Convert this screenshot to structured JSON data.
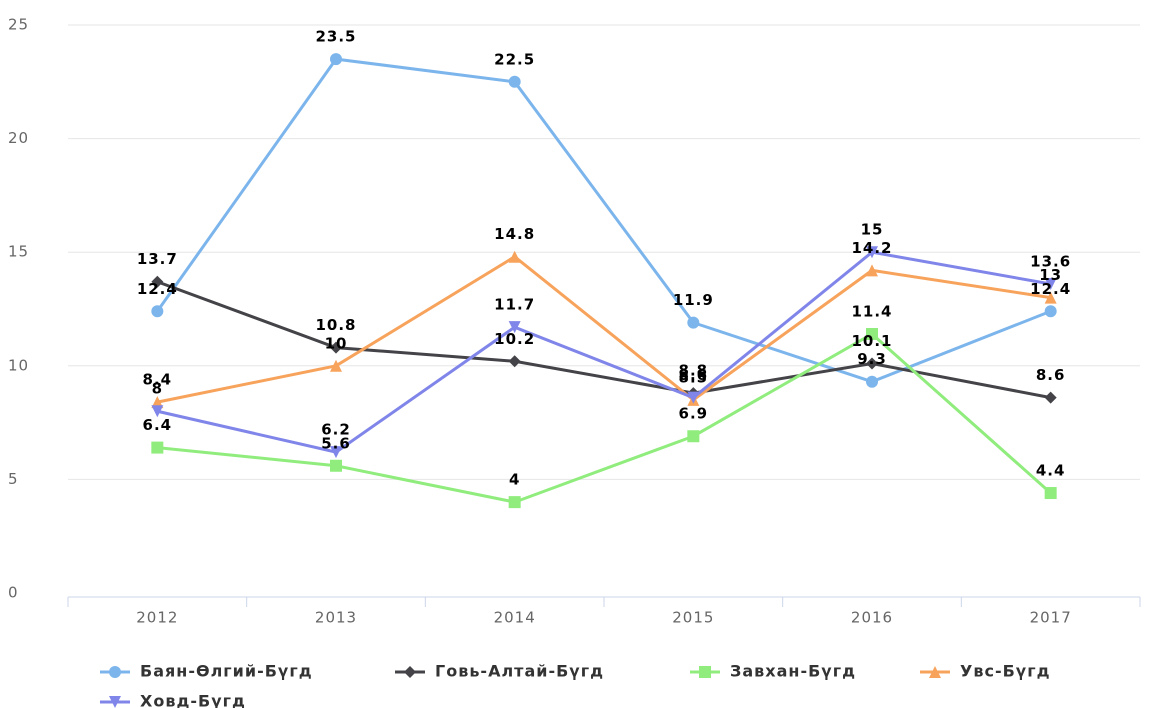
{
  "chart_data": {
    "type": "line",
    "categories": [
      "2012",
      "2013",
      "2014",
      "2015",
      "2016",
      "2017"
    ],
    "series": [
      {
        "name": "Баян-Өлгий-Бүгд",
        "color": "#7cb5ec",
        "marker": "circle",
        "values": [
          12.4,
          23.5,
          22.5,
          11.9,
          9.3,
          12.4
        ]
      },
      {
        "name": "Говь-Алтай-Бүгд",
        "color": "#434348",
        "marker": "diamond",
        "values": [
          13.7,
          10.8,
          10.2,
          8.8,
          10.1,
          8.6
        ]
      },
      {
        "name": "Завхан-Бүгд",
        "color": "#90ed7d",
        "marker": "square",
        "values": [
          6.4,
          5.6,
          4,
          6.9,
          11.4,
          4.4
        ]
      },
      {
        "name": "Увс-Бүгд",
        "color": "#f7a35c",
        "marker": "triangle",
        "values": [
          8.4,
          10,
          14.8,
          8.5,
          14.2,
          13
        ]
      },
      {
        "name": "Ховд-Бүгд",
        "color": "#8085e9",
        "marker": "triangle-down",
        "values": [
          8,
          6.2,
          11.7,
          8.6,
          15,
          13.6
        ]
      }
    ],
    "ylim": [
      0,
      25
    ],
    "yticks": [
      0,
      5,
      10,
      15,
      20,
      25
    ],
    "grid": true
  }
}
